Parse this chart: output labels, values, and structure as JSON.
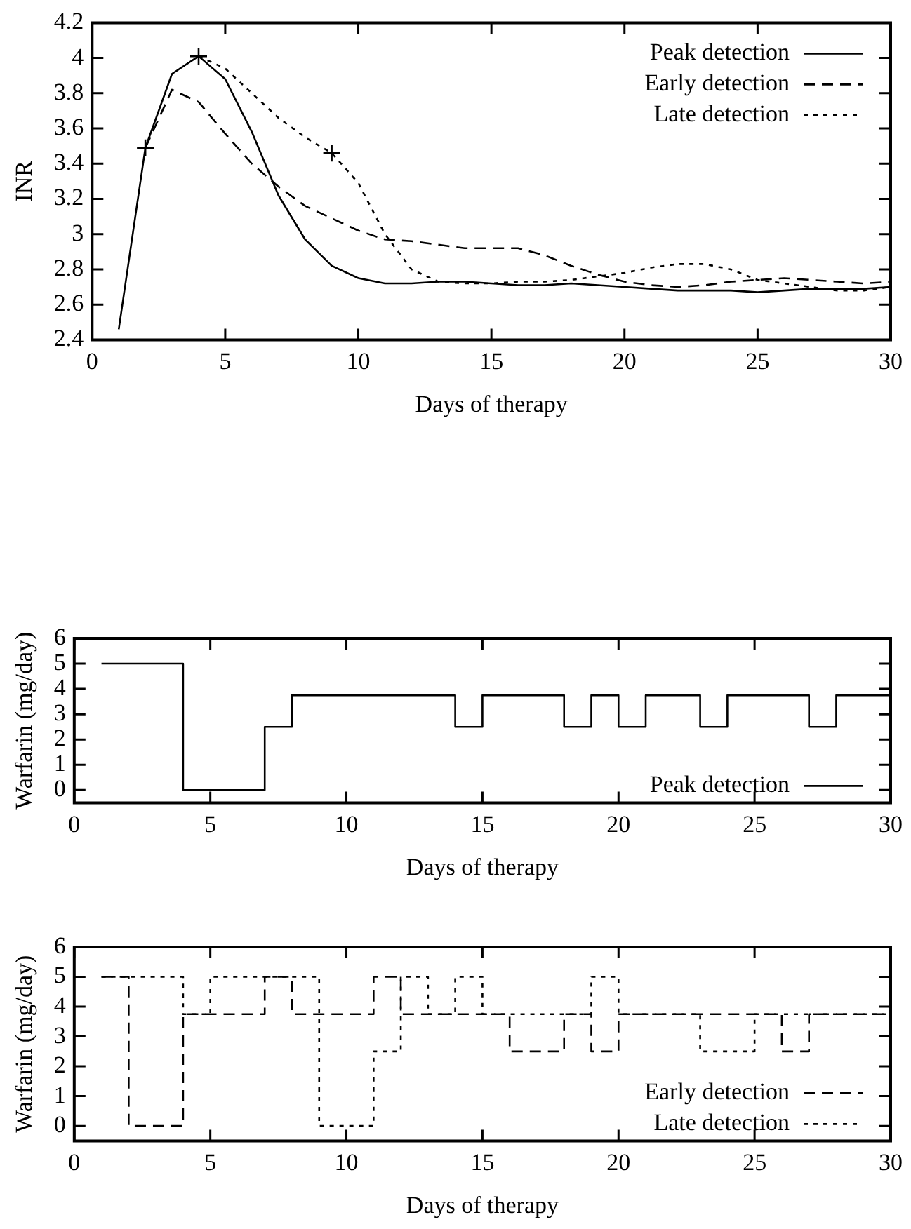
{
  "chart_data": [
    {
      "type": "line",
      "xlabel": "Days of therapy",
      "ylabel": "INR",
      "x": [
        1,
        2,
        3,
        4,
        5,
        6,
        7,
        8,
        9,
        10,
        11,
        12,
        13,
        14,
        15,
        16,
        17,
        18,
        19,
        20,
        21,
        22,
        23,
        24,
        25,
        26,
        27,
        28,
        29,
        30
      ],
      "xlim": [
        0,
        30
      ],
      "xticks": [
        0,
        5,
        10,
        15,
        20,
        25,
        30
      ],
      "ylim": [
        2.4,
        4.2
      ],
      "yticks": [
        2.4,
        2.6,
        2.8,
        3,
        3.2,
        3.4,
        3.6,
        3.8,
        4,
        4.2
      ],
      "grid": false,
      "legend": "top right",
      "marker": "none",
      "series": [
        {
          "name": "Peak detection",
          "color": "#000000",
          "line_style": "solid",
          "values": [
            2.46,
            3.49,
            3.91,
            4.01,
            3.88,
            3.58,
            3.22,
            2.97,
            2.82,
            2.75,
            2.72,
            2.72,
            2.73,
            2.73,
            2.72,
            2.71,
            2.71,
            2.72,
            2.71,
            2.7,
            2.69,
            2.68,
            2.68,
            2.68,
            2.67,
            2.68,
            2.69,
            2.69,
            2.69,
            2.7
          ]
        },
        {
          "name": "Early detection",
          "color": "#000000",
          "line_style": "dashed",
          "x": [
            2,
            3,
            4,
            5,
            6,
            7,
            8,
            9,
            10,
            11,
            12,
            13,
            14,
            15,
            16,
            17,
            18,
            19,
            20,
            21,
            22,
            23,
            24,
            25,
            26,
            27,
            28,
            29,
            30
          ],
          "values": [
            3.49,
            3.82,
            3.75,
            3.57,
            3.4,
            3.27,
            3.16,
            3.09,
            3.02,
            2.97,
            2.96,
            2.94,
            2.92,
            2.92,
            2.92,
            2.88,
            2.82,
            2.77,
            2.73,
            2.71,
            2.7,
            2.71,
            2.73,
            2.74,
            2.75,
            2.74,
            2.73,
            2.72,
            2.73
          ]
        },
        {
          "name": "Late detection",
          "color": "#000000",
          "line_style": "dotted",
          "x": [
            4,
            5,
            6,
            7,
            8,
            9,
            10,
            11,
            12,
            13,
            14,
            15,
            16,
            17,
            18,
            19,
            20,
            21,
            22,
            23,
            24,
            25,
            26,
            27,
            28,
            29,
            30
          ],
          "values": [
            4.01,
            3.94,
            3.8,
            3.66,
            3.55,
            3.46,
            3.29,
            3,
            2.8,
            2.73,
            2.72,
            2.72,
            2.73,
            2.73,
            2.74,
            2.76,
            2.78,
            2.81,
            2.83,
            2.83,
            2.8,
            2.74,
            2.72,
            2.7,
            2.68,
            2.68,
            2.7
          ]
        },
        {
          "type": "scatter",
          "marker": "cross",
          "color": "#000000",
          "x": [
            2,
            4,
            9
          ],
          "values": [
            3.49,
            4.01,
            3.46
          ]
        }
      ]
    },
    {
      "type": "step",
      "xlabel": "Days of therapy",
      "ylabel": "Warfarin (mg/day)",
      "xlim": [
        0,
        30
      ],
      "xticks": [
        0,
        5,
        10,
        15,
        20,
        25,
        30
      ],
      "ylim": [
        -0.5,
        6
      ],
      "yticks": [
        0,
        1,
        2,
        3,
        4,
        5,
        6
      ],
      "grid": false,
      "legend": "bottom right",
      "marker": "none",
      "series": [
        {
          "name": "Peak detection",
          "color": "#000000",
          "line_style": "solid",
          "x": [
            1,
            4,
            7,
            8,
            14,
            15,
            18,
            19,
            20,
            21,
            23,
            24,
            27,
            28,
            30
          ],
          "values": [
            5,
            0,
            2.5,
            3.75,
            2.5,
            3.75,
            2.5,
            3.75,
            2.5,
            3.75,
            2.5,
            3.75,
            2.5,
            3.75,
            3.75
          ]
        }
      ]
    },
    {
      "type": "step",
      "xlabel": "Days of therapy",
      "ylabel": "Warfarin (mg/day)",
      "xlim": [
        0,
        30
      ],
      "xticks": [
        0,
        5,
        10,
        15,
        20,
        25,
        30
      ],
      "ylim": [
        -0.5,
        6
      ],
      "yticks": [
        0,
        1,
        2,
        3,
        4,
        5,
        6
      ],
      "grid": false,
      "legend": "bottom right",
      "marker": "none",
      "series": [
        {
          "name": "Early detection",
          "color": "#000000",
          "line_style": "dashed",
          "x": [
            1,
            2,
            4,
            7,
            8,
            11,
            12,
            16,
            18,
            19,
            20,
            26,
            27,
            30
          ],
          "values": [
            5,
            0,
            3.75,
            5,
            3.75,
            5,
            3.75,
            2.5,
            3.75,
            2.5,
            3.75,
            2.5,
            3.75,
            3.75
          ]
        },
        {
          "name": "Late detection",
          "color": "#000000",
          "line_style": "dotted",
          "x": [
            1,
            4,
            5,
            9,
            11,
            12,
            13,
            14,
            15,
            19,
            20,
            23,
            25,
            30
          ],
          "values": [
            5,
            3.75,
            5,
            0,
            2.5,
            5,
            3.75,
            5,
            3.75,
            5,
            3.75,
            2.5,
            3.75,
            3.75
          ]
        }
      ]
    }
  ]
}
